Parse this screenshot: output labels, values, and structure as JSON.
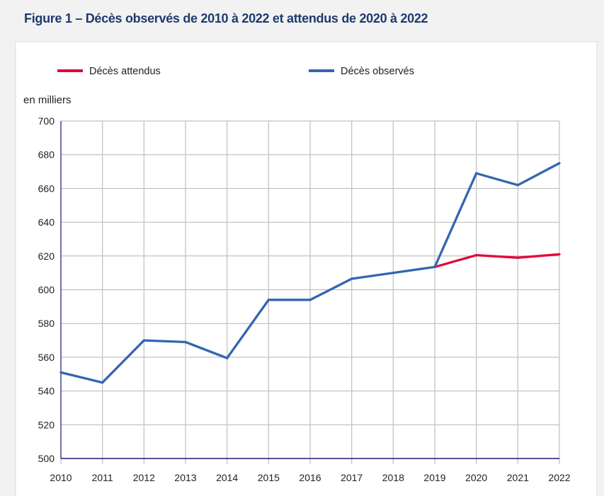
{
  "title": "Figure 1 – Décès observés de 2010 à 2022 et attendus de 2020 à 2022",
  "chart_data": {
    "type": "line",
    "title": "Figure 1 – Décès observés de 2010 à 2022 et attendus de 2020 à 2022",
    "xlabel": "",
    "ylabel": "en milliers",
    "x": [
      2010,
      2011,
      2012,
      2013,
      2014,
      2015,
      2016,
      2017,
      2018,
      2019,
      2020,
      2021,
      2022
    ],
    "xticks": [
      "2010",
      "2011",
      "2012",
      "2013",
      "2014",
      "2015",
      "2016",
      "2017",
      "2018",
      "2019",
      "2020",
      "2021",
      "2022"
    ],
    "ylim": [
      500,
      700
    ],
    "yticks": [
      "500",
      "520",
      "540",
      "560",
      "580",
      "600",
      "620",
      "640",
      "660",
      "680",
      "700"
    ],
    "grid": true,
    "legend_position": "top",
    "series": [
      {
        "name": "Décès attendus",
        "color": "#e3063b",
        "x": [
          2019,
          2020,
          2021,
          2022
        ],
        "values": [
          613.5,
          620.5,
          619,
          621
        ]
      },
      {
        "name": "Décès observés",
        "color": "#3366b0",
        "x": [
          2010,
          2011,
          2012,
          2013,
          2014,
          2015,
          2016,
          2017,
          2018,
          2019,
          2020,
          2021,
          2022
        ],
        "values": [
          551,
          545,
          570,
          569,
          559.5,
          594,
          594,
          606.5,
          610,
          613.5,
          669,
          662,
          675
        ]
      }
    ]
  }
}
